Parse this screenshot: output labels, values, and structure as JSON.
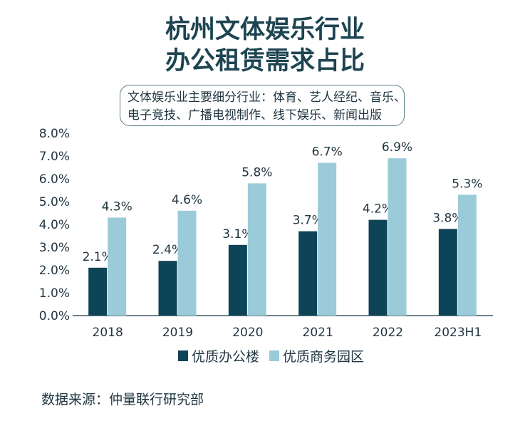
{
  "title_line1": "杭州文体娱乐行业",
  "title_line2": "办公租赁需求占比",
  "note_line1": "文体娱乐业主要细分行业：体育、艺人经纪、音乐、",
  "note_line2": "电子竞技、广播电视制作、线下娱乐、新闻出版",
  "source": "数据来源：仲量联行研究部",
  "colors": {
    "office": "#0d4457",
    "park": "#9bcbd8",
    "axis": "#3e5963"
  },
  "chart_data": {
    "type": "bar",
    "categories": [
      "2018",
      "2019",
      "2020",
      "2021",
      "2022",
      "2023H1"
    ],
    "series": [
      {
        "name": "优质办公楼",
        "values": [
          2.1,
          2.4,
          3.1,
          3.7,
          4.2,
          3.8
        ],
        "labels": [
          "2.1%",
          "2.4%",
          "3.1%",
          "3.7%",
          "4.2%",
          "3.8%"
        ]
      },
      {
        "name": "优质商务园区",
        "values": [
          4.3,
          4.6,
          5.8,
          6.7,
          6.9,
          5.3
        ],
        "labels": [
          "4.3%",
          "4.6%",
          "5.8%",
          "6.7%",
          "6.9%",
          "5.3%"
        ]
      }
    ],
    "ylim": [
      0,
      8
    ],
    "yticks": [
      "0.0%",
      "1.0%",
      "2.0%",
      "3.0%",
      "4.0%",
      "5.0%",
      "6.0%",
      "7.0%",
      "8.0%"
    ],
    "legend_position": "bottom",
    "grid": false
  }
}
